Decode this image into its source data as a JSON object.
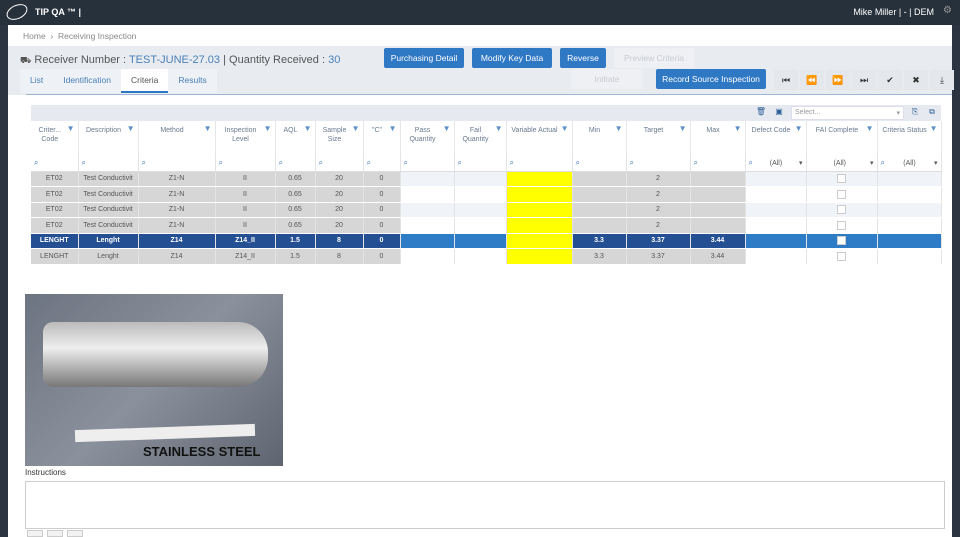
{
  "app": {
    "brand": "TIP QA ™ |",
    "user": "Mike Miller | - | DEM"
  },
  "breadcrumb": [
    "Home",
    "Receiving Inspection"
  ],
  "header": {
    "receiver_label": "Receiver Number :",
    "receiver_value": "TEST-JUNE-27.03",
    "qty_label": "Quantity Received :",
    "qty_value": "30"
  },
  "buttons": {
    "purchasing": "Purchasing Detail",
    "modify": "Modify Key Data",
    "reverse": "Reverse",
    "preview": "Preview Criteria",
    "initiate": "Initiate",
    "record": "Record Source Inspection"
  },
  "tabs": [
    "List",
    "Identification",
    "Criteria",
    "Results"
  ],
  "grid": {
    "layout_select_placeholder": "Select...",
    "columns": [
      "Criter... Code",
      "Description",
      "Method",
      "Inspection Level",
      "AQL",
      "Sample Size",
      "\"C\"",
      "Pass Quantity",
      "Fail Quantity",
      "Variable Actual",
      "Min",
      "Target",
      "Max",
      "Defect Code",
      "FAI Complete",
      "Criteria Status"
    ],
    "filter_all": "(All)",
    "rows": [
      [
        "ET02",
        "Test Conductivit",
        "Z1-N",
        "II",
        "0.65",
        "20",
        "0",
        "",
        "",
        "",
        "",
        "2",
        "",
        "",
        "",
        ""
      ],
      [
        "ET02",
        "Test Conductivit",
        "Z1-N",
        "II",
        "0.65",
        "20",
        "0",
        "",
        "",
        "",
        "",
        "2",
        "",
        "",
        "",
        ""
      ],
      [
        "ET02",
        "Test Conductivit",
        "Z1-N",
        "II",
        "0.65",
        "20",
        "0",
        "",
        "",
        "",
        "",
        "2",
        "",
        "",
        "",
        ""
      ],
      [
        "ET02",
        "Test Conductivit",
        "Z1-N",
        "II",
        "0.65",
        "20",
        "0",
        "",
        "",
        "",
        "",
        "2",
        "",
        "",
        "",
        ""
      ],
      [
        "LENGHT",
        "Lenght",
        "Z14",
        "Z14_II",
        "1.5",
        "8",
        "0",
        "",
        "",
        "",
        "3.3",
        "3.37",
        "3.44",
        "",
        "",
        ""
      ],
      [
        "LENGHT",
        "Lenght",
        "Z14",
        "Z14_II",
        "1.5",
        "8",
        "0",
        "",
        "",
        "",
        "3.3",
        "3.37",
        "3.44",
        "",
        "",
        ""
      ]
    ],
    "selected_row": 4
  },
  "image_caption": "STAINLESS STEEL",
  "instructions_label": "Instructions",
  "colors": {
    "accent": "#2f78c4",
    "selected_row": "#244f93",
    "variable_actual": "#ffff00"
  }
}
